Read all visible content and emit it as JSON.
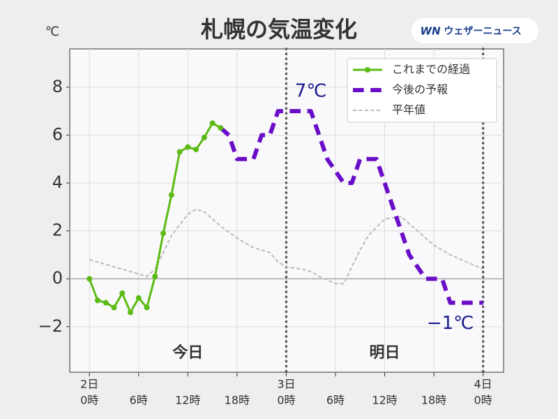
{
  "chart_data": {
    "type": "line",
    "title": "札幌の気温変化",
    "y_unit": "℃",
    "brand": "ウェザーニュース",
    "brand_mark": "WN",
    "xlim": [
      -2.4,
      50.5
    ],
    "ylim": [
      -3.9,
      9.6
    ],
    "xticks": [
      {
        "value": 0,
        "date": "2日",
        "label": "0時"
      },
      {
        "value": 6,
        "label": "6時"
      },
      {
        "value": 12,
        "label": "12時"
      },
      {
        "value": 18,
        "label": "18時"
      },
      {
        "value": 24,
        "date": "3日",
        "label": "0時"
      },
      {
        "value": 30,
        "label": "6時"
      },
      {
        "value": 36,
        "label": "12時"
      },
      {
        "value": 42,
        "label": "18時"
      },
      {
        "value": 48,
        "date": "4日",
        "label": "0時"
      }
    ],
    "yticks": [
      {
        "value": -2,
        "label": "−2"
      },
      0,
      2,
      4,
      6,
      8
    ],
    "grid": true,
    "zero_line": 0,
    "day_lines": [
      24,
      48
    ],
    "day_labels": [
      "今日",
      "明日"
    ],
    "legend": "upper right",
    "series": [
      {
        "name": "これまでの経過",
        "color": "#5bbb14",
        "dash": "solid",
        "markers": true,
        "width": 3,
        "x": [
          0,
          1,
          2,
          3,
          4,
          5,
          6,
          7,
          8,
          9,
          10,
          11,
          12,
          13,
          14,
          15,
          16
        ],
        "values": [
          0,
          -0.9,
          -1.0,
          -1.2,
          -0.6,
          -1.4,
          -0.8,
          -1.2,
          0.1,
          1.9,
          3.5,
          5.3,
          5.5,
          5.4,
          5.9,
          6.5,
          6.3
        ]
      },
      {
        "name": "今後の予報",
        "color": "#6a0dc8",
        "dash": "dashed",
        "markers": false,
        "width": 6,
        "x": [
          16,
          17,
          18,
          20,
          21,
          22,
          23,
          27,
          29,
          31,
          32,
          33,
          35,
          36,
          37,
          38,
          39,
          41,
          43,
          44,
          48
        ],
        "values": [
          6.3,
          6.0,
          5.0,
          5.0,
          6.0,
          6.0,
          7.0,
          7.0,
          5.0,
          4.0,
          4.0,
          5.0,
          5.0,
          4.0,
          3.0,
          2.0,
          1.0,
          0,
          0,
          -1.0,
          -1.0
        ]
      },
      {
        "name": "平年値",
        "color": "#bbbbbb",
        "dash": "dashed",
        "markers": false,
        "width": 2,
        "x": [
          0,
          2,
          4,
          6,
          7,
          8,
          10,
          12,
          13,
          14,
          16,
          18,
          20,
          22,
          23,
          24,
          26,
          27,
          28,
          30,
          31,
          32,
          33,
          34,
          36,
          38,
          40,
          42,
          44,
          46,
          48
        ],
        "values": [
          0.8,
          0.6,
          0.4,
          0.2,
          0.1,
          0.4,
          1.8,
          2.7,
          2.9,
          2.8,
          2.2,
          1.7,
          1.3,
          1.1,
          0.7,
          0.5,
          0.4,
          0.3,
          0.1,
          -0.2,
          -0.2,
          0.5,
          1.2,
          1.8,
          2.5,
          2.6,
          2.0,
          1.4,
          1.0,
          0.7,
          0.4
        ]
      }
    ],
    "annotations": [
      {
        "text": "7℃",
        "x": 27,
        "y": 7,
        "position": "above"
      },
      {
        "text": "−1℃",
        "x": 44,
        "y": -1,
        "position": "below"
      }
    ]
  }
}
